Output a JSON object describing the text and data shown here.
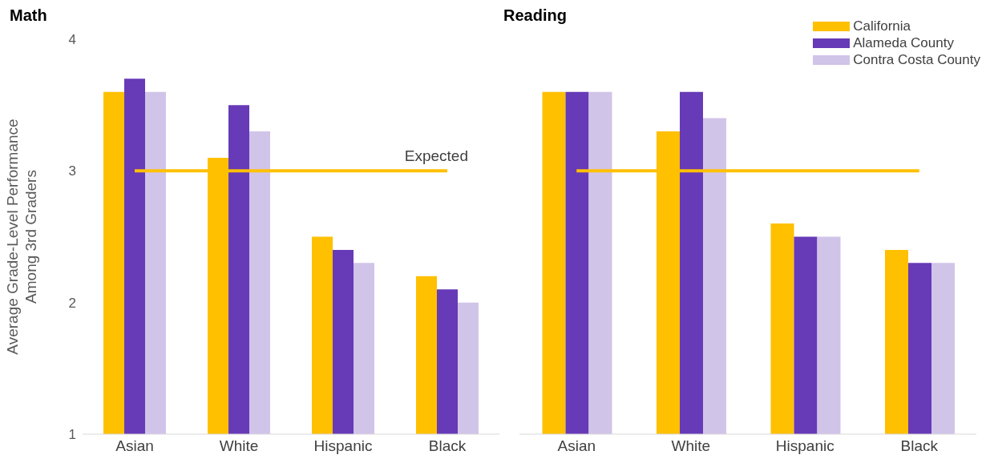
{
  "chart_data": [
    {
      "type": "bar",
      "title": "Math",
      "ylabel": "Average Grade-Level Performance\nAmong 3rd Graders",
      "categories": [
        "Asian",
        "White",
        "Hispanic",
        "Black"
      ],
      "series": [
        {
          "color": "#ffc000",
          "values": [
            3.6,
            3.1,
            2.5,
            2.2
          ]
        },
        {
          "color": "#673ab7",
          "values": [
            3.7,
            3.5,
            2.4,
            2.1
          ]
        },
        {
          "color": "#d1c4e9",
          "values": [
            3.6,
            3.3,
            2.3,
            2.0
          ]
        }
      ],
      "ylim": [
        1,
        4
      ],
      "yticks": [
        1,
        2,
        3,
        4
      ],
      "grid": false,
      "legend": false,
      "ref_lines": [
        {
          "axis": "y",
          "value": 3,
          "label": "Expected",
          "color": "#ffc000"
        }
      ]
    },
    {
      "type": "bar",
      "title": "Reading",
      "categories": [
        "Asian",
        "White",
        "Hispanic",
        "Black"
      ],
      "series": [
        {
          "name": "California",
          "color": "#ffc000",
          "values": [
            3.6,
            3.3,
            2.6,
            2.4
          ]
        },
        {
          "name": "Alameda County",
          "color": "#673ab7",
          "values": [
            3.6,
            3.6,
            2.5,
            2.3
          ]
        },
        {
          "name": "Contra Costa County",
          "color": "#d1c4e9",
          "values": [
            3.6,
            3.4,
            2.5,
            2.3
          ]
        }
      ],
      "ylim": [
        1,
        4
      ],
      "yticks": [
        1,
        2,
        3,
        4
      ],
      "grid": false,
      "legend": "top right",
      "tick_labels": "x",
      "ref_lines": [
        {
          "axis": "y",
          "value": 3,
          "color": "#ffc000"
        }
      ]
    }
  ]
}
